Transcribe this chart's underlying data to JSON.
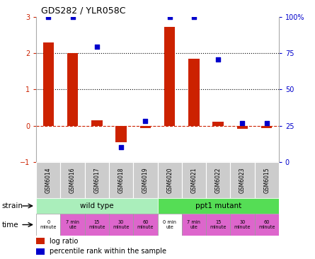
{
  "title": "GDS282 / YLR058C",
  "samples": [
    "GSM6014",
    "GSM6016",
    "GSM6017",
    "GSM6018",
    "GSM6019",
    "GSM6020",
    "GSM6021",
    "GSM6022",
    "GSM6023",
    "GSM6015"
  ],
  "log_ratio": [
    2.3,
    2.0,
    0.15,
    -0.45,
    -0.07,
    2.72,
    1.85,
    0.1,
    -0.08,
    -0.07
  ],
  "percentile_left": [
    3.0,
    3.0,
    2.18,
    -0.6,
    0.13,
    3.0,
    3.0,
    1.82,
    0.07,
    0.06
  ],
  "bar_color": "#cc2200",
  "dot_color": "#0000cc",
  "ylim_left": [
    -1,
    3
  ],
  "left_ticks": [
    -1,
    0,
    1,
    2,
    3
  ],
  "right_ticks": [
    0,
    25,
    50,
    75,
    100
  ],
  "right_tick_labels": [
    "0",
    "25",
    "50",
    "75",
    "100%"
  ],
  "hline_y": [
    1,
    2
  ],
  "zero_line_color": "#cc2200",
  "strain_labels": [
    "wild type",
    "ppt1 mutant"
  ],
  "strain_colors": [
    "#aaeebb",
    "#55dd55"
  ],
  "time_labels": [
    "0\nminute",
    "7 min\nute",
    "15\nminute",
    "30\nminute",
    "60\nminute",
    "0 min\nute",
    "7 min\nute",
    "15\nminute",
    "30\nminute",
    "60\nminute"
  ],
  "time_colors": [
    "#ffffff",
    "#dd66cc",
    "#dd66cc",
    "#dd66cc",
    "#dd66cc",
    "#ffffff",
    "#dd66cc",
    "#dd66cc",
    "#dd66cc",
    "#dd66cc"
  ],
  "gsm_bg": "#cccccc",
  "bg_color": "#ffffff",
  "tick_label_color_left": "#cc2200",
  "tick_label_color_right": "#0000cc"
}
